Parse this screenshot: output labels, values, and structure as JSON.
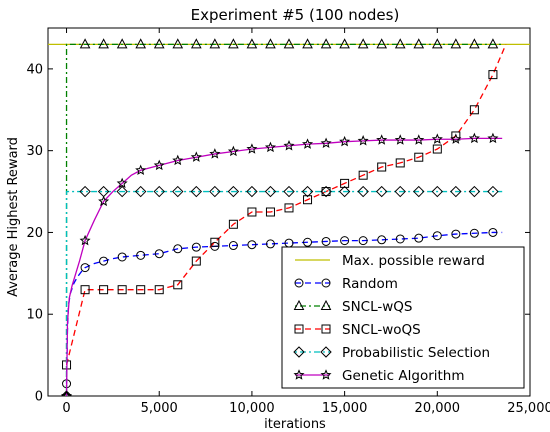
{
  "chart_data": {
    "type": "line",
    "title": "Experiment #5 (100 nodes)",
    "xlabel": "iterations",
    "ylabel": "Average Highest Reward",
    "xlim": [
      -1000,
      25000
    ],
    "ylim": [
      0,
      45
    ],
    "xticks": [
      0,
      5000,
      10000,
      15000,
      20000,
      25000
    ],
    "xtick_labels": [
      "0",
      "5,000",
      "10,000",
      "15,000",
      "20,000",
      "25,000"
    ],
    "yticks": [
      0,
      10,
      20,
      30,
      40
    ],
    "ytick_labels": [
      "0",
      "10",
      "20",
      "30",
      "40"
    ],
    "grid": false,
    "legend_position": "bottom-right",
    "series": [
      {
        "name": "Max. possible reward",
        "color": "#bfbf00",
        "dash": "solid",
        "marker": "none",
        "x": [
          -1000,
          25000
        ],
        "y": [
          43,
          43
        ]
      },
      {
        "name": "Random",
        "color": "#0000ff",
        "dash": "dashed",
        "marker": "circle",
        "x": [
          0,
          50,
          100,
          200,
          400,
          600,
          800,
          1000,
          1500,
          2000,
          2500,
          3000,
          3500,
          4000,
          5000,
          6000,
          7000,
          8000,
          9000,
          10000,
          11000,
          12000,
          13000,
          14000,
          15000,
          16000,
          17000,
          18000,
          19000,
          20000,
          21000,
          22000,
          23000,
          23500
        ],
        "y": [
          1.5,
          8,
          11,
          12.5,
          13.8,
          14.6,
          15.2,
          15.7,
          16.2,
          16.5,
          16.8,
          17.0,
          17.1,
          17.2,
          17.4,
          18.0,
          18.2,
          18.3,
          18.4,
          18.5,
          18.6,
          18.7,
          18.8,
          18.9,
          19.0,
          19.0,
          19.1,
          19.2,
          19.3,
          19.6,
          19.8,
          19.9,
          20.0,
          20.0
        ],
        "markers_x": [
          0,
          1000,
          2000,
          3000,
          4000,
          5000,
          6000,
          7000,
          8000,
          9000,
          10000,
          11000,
          12000,
          13000,
          14000,
          15000,
          16000,
          17000,
          18000,
          19000,
          20000,
          21000,
          22000,
          23000
        ]
      },
      {
        "name": "SNCL-wQS",
        "color": "#008000",
        "dash": "dashdot",
        "marker": "triangle",
        "x": [
          0,
          0,
          1000,
          23500
        ],
        "y": [
          0,
          43,
          43,
          43
        ],
        "markers_x": [
          0,
          1000,
          2000,
          3000,
          4000,
          5000,
          6000,
          7000,
          8000,
          9000,
          10000,
          11000,
          12000,
          13000,
          14000,
          15000,
          16000,
          17000,
          18000,
          19000,
          20000,
          21000,
          22000,
          23000
        ]
      },
      {
        "name": "SNCL-woQS",
        "color": "#ff0000",
        "dash": "dashed",
        "marker": "square",
        "x": [
          0,
          1000,
          2000,
          3000,
          4000,
          5000,
          6000,
          7000,
          8000,
          9000,
          10000,
          11000,
          12000,
          13000,
          14000,
          15000,
          16000,
          17000,
          18000,
          19000,
          20000,
          21000,
          22000,
          23000,
          23700
        ],
        "y": [
          3.8,
          13.0,
          13.0,
          13.0,
          13.0,
          13.0,
          13.6,
          16.5,
          18.8,
          21.0,
          22.5,
          22.5,
          23.0,
          24.0,
          25.0,
          26.0,
          27.0,
          28.0,
          28.5,
          29.2,
          30.2,
          31.8,
          35.0,
          39.3,
          43.0
        ],
        "markers_x": [
          0,
          1000,
          2000,
          3000,
          4000,
          5000,
          6000,
          7000,
          8000,
          9000,
          10000,
          11000,
          12000,
          13000,
          14000,
          15000,
          16000,
          17000,
          18000,
          19000,
          20000,
          21000,
          22000,
          23000
        ]
      },
      {
        "name": "Probabilistic Selection",
        "color": "#00bfbf",
        "dash": "dashdot",
        "marker": "diamond",
        "x": [
          0,
          0,
          23500
        ],
        "y": [
          0,
          25,
          25
        ],
        "markers_x": [
          0,
          1000,
          2000,
          3000,
          4000,
          5000,
          6000,
          7000,
          8000,
          9000,
          10000,
          11000,
          12000,
          13000,
          14000,
          15000,
          16000,
          17000,
          18000,
          19000,
          20000,
          21000,
          22000,
          23000
        ]
      },
      {
        "name": "Genetic Algorithm",
        "color": "#bf00bf",
        "dash": "solid",
        "marker": "star",
        "x": [
          0,
          50,
          150,
          300,
          500,
          700,
          1000,
          1500,
          2000,
          2500,
          3000,
          3500,
          4000,
          5000,
          6000,
          7000,
          8000,
          9000,
          10000,
          11000,
          12000,
          13000,
          14000,
          15000,
          16000,
          17000,
          18000,
          19000,
          20000,
          21000,
          22000,
          23000,
          23500
        ],
        "y": [
          0,
          9,
          12,
          13.5,
          15,
          16.5,
          19.0,
          21.5,
          23.8,
          25.0,
          26.0,
          27.0,
          27.6,
          28.2,
          28.8,
          29.2,
          29.6,
          29.9,
          30.2,
          30.4,
          30.6,
          30.8,
          30.9,
          31.1,
          31.2,
          31.3,
          31.3,
          31.3,
          31.4,
          31.4,
          31.5,
          31.5,
          31.5
        ],
        "markers_x": [
          0,
          1000,
          2000,
          3000,
          4000,
          5000,
          6000,
          7000,
          8000,
          9000,
          10000,
          11000,
          12000,
          13000,
          14000,
          15000,
          16000,
          17000,
          18000,
          19000,
          20000,
          21000,
          22000,
          23000
        ]
      }
    ]
  }
}
